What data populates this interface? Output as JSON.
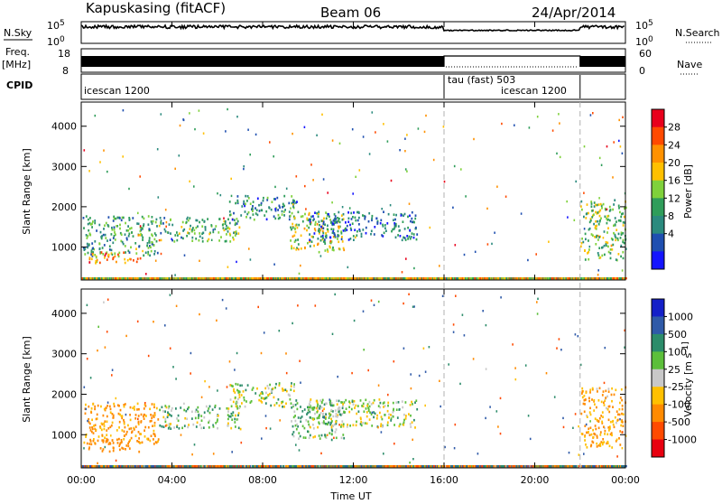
{
  "header": {
    "station": "Kapuskasing (fitACF)",
    "beam": "Beam 06",
    "date": "24/Apr/2014"
  },
  "strip_labels": {
    "nsky": "N.Sky",
    "nsearch": "N.Search",
    "freq": "Freq.",
    "freq_unit": "[MHz]",
    "nave": "Nave",
    "cpid": "CPID"
  },
  "strip_ticks": {
    "nsky_top": "10^5",
    "nsky_bottom": "10^0",
    "nsearch_top": "10^5",
    "nsearch_bottom": "10^0",
    "freq_top": "18",
    "freq_bottom": "8",
    "nave_top": "60",
    "nave_bottom": "0"
  },
  "cpid_segments": [
    {
      "label": "icescan 1200",
      "start": 0,
      "end": 16
    },
    {
      "label": "tau (fast) 503",
      "start": 16,
      "end": 22
    },
    {
      "label": "icescan 1200",
      "start": 16,
      "end": 22
    }
  ],
  "power_colorbar": {
    "label": "Power [dB]",
    "ticks": [
      "28",
      "24",
      "20",
      "16",
      "12",
      "8",
      "4"
    ],
    "colors": [
      "#e8001c",
      "#ff4a00",
      "#ff9100",
      "#ffc000",
      "#7fd13b",
      "#2f9d5a",
      "#2b8a7e",
      "#1f4fb0",
      "#1414ff"
    ]
  },
  "velocity_colorbar": {
    "label": "Velocity [m s^-1]",
    "ticks": [
      "1000",
      "500",
      "100",
      "25",
      "-25",
      "-100",
      "-500",
      "-1000"
    ],
    "colors": [
      "#1420c8",
      "#2f5aa8",
      "#2c8c6a",
      "#5cbf3a",
      "#c8c8c8",
      "#ffc000",
      "#ff8a00",
      "#ff4a00",
      "#e80010"
    ]
  },
  "chart_data": {
    "type": "heatmap",
    "panels": [
      "Power",
      "Velocity"
    ],
    "xlabel": "Time UT",
    "ylabel": "Slant Range [km]",
    "x_ticks": [
      "00:00",
      "04:00",
      "08:00",
      "12:00",
      "16:00",
      "20:00",
      "00:00"
    ],
    "x_range_hours": [
      0,
      24
    ],
    "y_ticks": [
      "1000",
      "2000",
      "3000",
      "4000"
    ],
    "y_range_km": [
      180,
      4600
    ],
    "mode_boundaries_hours": [
      16,
      22
    ],
    "scatter_regions": [
      {
        "t0": 0.0,
        "t1": 3.4,
        "r0": 800,
        "r1": 1800,
        "power": 10,
        "velocity": -150
      },
      {
        "t0": 0.3,
        "t1": 2.6,
        "r0": 600,
        "r1": 900,
        "power": 22,
        "velocity": -300
      },
      {
        "t0": 3.4,
        "t1": 7.0,
        "r0": 1150,
        "r1": 1750,
        "power": 12,
        "velocity": 60
      },
      {
        "t0": 6.5,
        "t1": 9.5,
        "r0": 1700,
        "r1": 2300,
        "power": 8,
        "velocity": 15
      },
      {
        "t0": 9.2,
        "t1": 11.6,
        "r0": 900,
        "r1": 1900,
        "power": 16,
        "velocity": 80
      },
      {
        "t0": 10.0,
        "t1": 14.8,
        "r0": 1200,
        "r1": 1900,
        "power": 6,
        "velocity": 10
      },
      {
        "t0": 22.0,
        "t1": 24.0,
        "r0": 700,
        "r1": 2200,
        "power": 14,
        "velocity": -120
      }
    ]
  }
}
